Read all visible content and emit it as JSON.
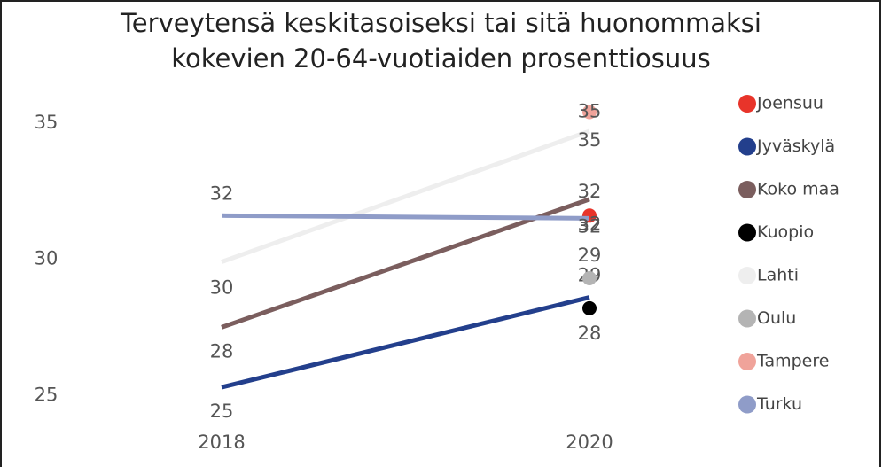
{
  "chart_data": {
    "type": "line",
    "title": "Terveytensä keskitasoiseksi tai sitä huonommaksi kokevien 20-64-vuotiaiden prosenttiosuus",
    "categories": [
      "2018",
      "2020"
    ],
    "ylim": [
      24,
      36
    ],
    "yticks": [
      25,
      30,
      35
    ],
    "series": [
      {
        "name": "Joensuu",
        "color": "#e8342a",
        "values": [
          null,
          31.6
        ],
        "value_labels": [
          null,
          "32"
        ]
      },
      {
        "name": "Jyväskylä",
        "color": "#233f8c",
        "values": [
          25.3,
          28.6
        ],
        "value_labels": [
          "25",
          "29"
        ]
      },
      {
        "name": "Koko maa",
        "color": "#7b5e5e",
        "values": [
          27.5,
          32.2
        ],
        "value_labels": [
          "28",
          "32"
        ]
      },
      {
        "name": "Kuopio",
        "color": "#000000",
        "values": [
          null,
          28.2
        ],
        "value_labels": [
          null,
          "28"
        ]
      },
      {
        "name": "Lahti",
        "color": "#eeeeee",
        "values": [
          29.9,
          34.7
        ],
        "value_labels": [
          "30",
          "35"
        ]
      },
      {
        "name": "Oulu",
        "color": "#b4b4b4",
        "values": [
          null,
          29.3
        ],
        "value_labels": [
          null,
          "29"
        ]
      },
      {
        "name": "Tampere",
        "color": "#f0a39a",
        "values": [
          null,
          35.4
        ],
        "value_labels": [
          null,
          "35"
        ]
      },
      {
        "name": "Turku",
        "color": "#8f9cc8",
        "values": [
          31.6,
          31.5
        ],
        "value_labels": [
          "32",
          "32"
        ]
      }
    ]
  }
}
